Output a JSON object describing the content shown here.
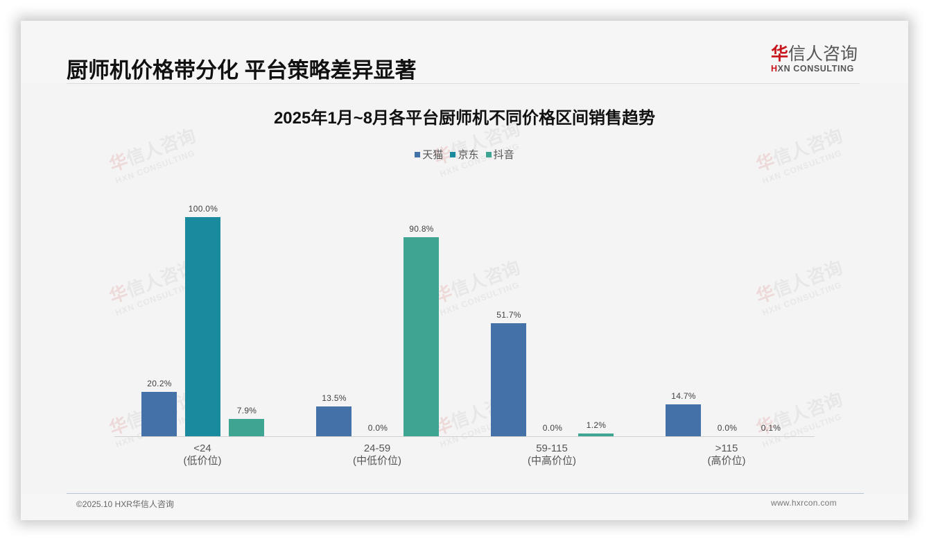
{
  "page": {
    "title": "厨师机价格带分化 平台策略差异显著",
    "logo": {
      "cn_mark": "华",
      "cn_rest": "信人咨询",
      "en_mark": "H",
      "en_rest": "XN CONSULTING"
    },
    "footer": {
      "copyright": "©2025.10 HXR华信人咨询",
      "website": "www.hxrcon.com"
    },
    "watermark": {
      "cn_mark": "华",
      "cn_rest": "信人咨询",
      "en": "HXN CONSULTING"
    }
  },
  "colors": {
    "tmall": "#4472a8",
    "jd": "#1a8a9f",
    "douyin": "#3fa593"
  },
  "chart_data": {
    "type": "bar",
    "title": "2025年1月~8月各平台厨师机不同价格区间销售趋势",
    "categories": [
      "<24\n(低价位)",
      "24-59\n(中低价位)",
      "59-115\n(中高价位)",
      ">115\n(高价位)"
    ],
    "category_labels": [
      {
        "range": "<24",
        "tier": "(低价位)"
      },
      {
        "range": "24-59",
        "tier": "(中低价位)"
      },
      {
        "range": "59-115",
        "tier": "(中高价位)"
      },
      {
        "range": ">115",
        "tier": "(高价位)"
      }
    ],
    "series": [
      {
        "name": "天猫",
        "color": "#4472a8",
        "values": [
          20.2,
          13.5,
          51.7,
          14.7
        ],
        "labels": [
          "20.2%",
          "13.5%",
          "51.7%",
          "14.7%"
        ]
      },
      {
        "name": "京东",
        "color": "#1a8a9f",
        "values": [
          100.0,
          0.0,
          0.0,
          0.0
        ],
        "labels": [
          "100.0%",
          "0.0%",
          "0.0%",
          "0.0%"
        ]
      },
      {
        "name": "抖音",
        "color": "#3fa593",
        "values": [
          7.9,
          90.8,
          1.2,
          0.1
        ],
        "labels": [
          "7.9%",
          "90.8%",
          "1.2%",
          "0.1%"
        ]
      }
    ],
    "legend": [
      "天猫",
      "京东",
      "抖音"
    ],
    "legend_position": "top",
    "xlabel": "",
    "ylabel": "",
    "ylim": [
      0,
      100
    ],
    "grid": false,
    "unit": "%"
  }
}
